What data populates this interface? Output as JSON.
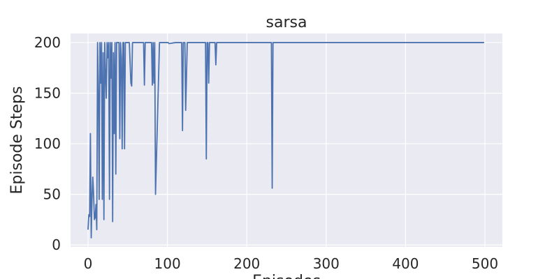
{
  "chart_data": {
    "type": "line",
    "title": "sarsa",
    "xlabel": "Episodes",
    "ylabel": "Episode Steps",
    "xlim": [
      -22,
      522
    ],
    "ylim": [
      -2,
      209
    ],
    "xticks": [
      0,
      100,
      200,
      300,
      400,
      500
    ],
    "yticks": [
      0,
      50,
      100,
      150,
      200
    ],
    "grid": true,
    "background": "#EAEAF2",
    "grid_color": "#FFFFFF",
    "line_color": "#4C72B0",
    "series": [
      {
        "x": [
          0,
          1,
          2,
          3,
          4,
          5,
          6,
          7,
          8,
          9,
          10,
          11,
          12,
          13,
          14,
          15,
          16,
          17,
          18,
          19,
          20,
          21,
          22,
          23,
          24,
          25,
          26,
          27,
          28,
          29,
          30,
          31,
          32,
          33,
          34,
          35,
          36,
          37,
          38,
          39,
          40,
          41,
          42,
          43,
          44,
          45,
          46,
          47,
          48,
          49,
          50,
          52,
          54,
          55,
          56,
          58,
          60,
          65,
          70,
          71,
          72,
          75,
          80,
          81,
          82,
          83,
          84,
          85,
          86,
          90,
          95,
          100,
          101,
          102,
          110,
          118,
          119,
          120,
          121,
          122,
          123,
          125,
          130,
          140,
          147,
          148,
          149,
          150,
          151,
          152,
          153,
          155,
          158,
          160,
          161,
          162,
          163,
          165,
          170,
          180,
          200,
          220,
          230,
          231,
          232,
          233,
          234,
          240,
          260,
          300,
          350,
          400,
          450,
          499
        ],
        "y": [
          15,
          30,
          28,
          110,
          7,
          45,
          67,
          50,
          25,
          27,
          40,
          15,
          200,
          155,
          45,
          200,
          160,
          200,
          45,
          190,
          25,
          200,
          170,
          145,
          200,
          185,
          200,
          45,
          200,
          165,
          200,
          23,
          190,
          110,
          200,
          70,
          200,
          200,
          200,
          200,
          105,
          200,
          185,
          95,
          200,
          200,
          95,
          200,
          200,
          200,
          200,
          200,
          160,
          157,
          200,
          200,
          200,
          200,
          200,
          158,
          200,
          200,
          200,
          158,
          200,
          160,
          200,
          50,
          80,
          200,
          200,
          200,
          200,
          199,
          200,
          200,
          113,
          200,
          200,
          200,
          133,
          200,
          200,
          200,
          200,
          200,
          85,
          200,
          200,
          160,
          200,
          200,
          200,
          200,
          178,
          200,
          200,
          200,
          200,
          200,
          200,
          200,
          200,
          200,
          56,
          200,
          200,
          200,
          200,
          200,
          200,
          200,
          200,
          200
        ]
      }
    ]
  }
}
